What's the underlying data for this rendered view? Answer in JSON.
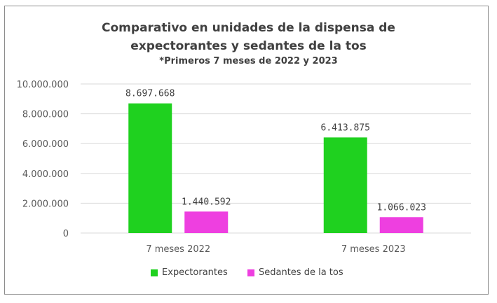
{
  "chart_data": {
    "type": "bar",
    "title_lines": [
      "Comparativo en unidades de la dispensa de",
      "expectorantes y sedantes de la tos"
    ],
    "subtitle": "*Primeros 7 meses de 2022 y 2023",
    "categories": [
      "7 meses 2022",
      "7 meses 2023"
    ],
    "series": [
      {
        "name": "Expectorantes",
        "values": [
          8697668,
          6413875
        ],
        "labels": [
          "8.697.668",
          "6.413.875"
        ],
        "color": "#1fd11f"
      },
      {
        "name": "Sedantes de la tos",
        "values": [
          1440592,
          1066023
        ],
        "labels": [
          "1.440.592",
          "1.066.023"
        ],
        "color": "#ee3fe0"
      }
    ],
    "ylim": [
      0,
      10000000
    ],
    "yticks": [
      0,
      2000000,
      4000000,
      6000000,
      8000000,
      10000000
    ],
    "ytick_labels": [
      "0",
      "2.000.000",
      "4.000.000",
      "6.000.000",
      "8.000.000",
      "10.000.000"
    ],
    "grid": true,
    "legend": "bottom"
  }
}
